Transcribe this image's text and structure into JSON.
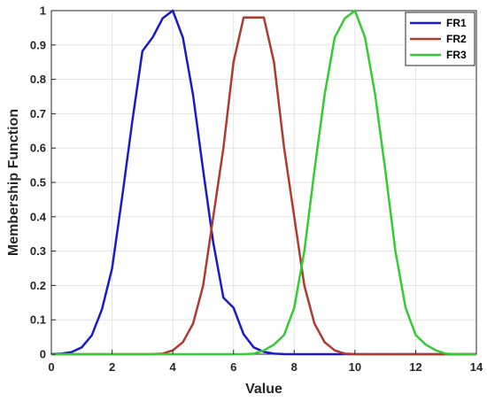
{
  "chart_data": {
    "type": "line",
    "xlabel": "Value",
    "ylabel": "Membership Function",
    "xlim": [
      0,
      14
    ],
    "ylim": [
      0,
      1
    ],
    "xticks": [
      "0",
      "2",
      "4",
      "6",
      "8",
      "10",
      "12",
      "14"
    ],
    "yticks": [
      "0",
      "0.1",
      "0.2",
      "0.3",
      "0.4",
      "0.5",
      "0.6",
      "0.7",
      "0.8",
      "0.9",
      "1"
    ],
    "grid": true,
    "legend_position": "top-right",
    "x": [
      0,
      0.333,
      0.667,
      1,
      1.333,
      1.667,
      2,
      2.333,
      2.667,
      3,
      3.333,
      3.667,
      4,
      4.333,
      4.667,
      5,
      5.333,
      5.667,
      6,
      6.333,
      6.667,
      7,
      7.333,
      7.667,
      8,
      8.333,
      8.667,
      9,
      9.333,
      9.667,
      10,
      10.333,
      10.667,
      11,
      11.333,
      11.667,
      12,
      12.333,
      12.667,
      13,
      13.333,
      13.667,
      14
    ],
    "series": [
      {
        "name": "FR1",
        "color": "#1a1acc",
        "values": [
          0.0003,
          0.0015,
          0.0061,
          0.0198,
          0.055,
          0.1307,
          0.2494,
          0.4578,
          0.6785,
          0.8825,
          0.9216,
          0.9778,
          1.0,
          0.9216,
          0.7548,
          0.5353,
          0.3247,
          0.1645,
          0.1353,
          0.0578,
          0.0198,
          0.0067,
          0.0017,
          0.0004,
          0.0001,
          0,
          0,
          0,
          0,
          0,
          0,
          0,
          0,
          0,
          0,
          0,
          0,
          0,
          0,
          0,
          0,
          0,
          0
        ]
      },
      {
        "name": "FR2",
        "color": "#b03a2e",
        "values": [
          0,
          0,
          0,
          0,
          0,
          0,
          0,
          0,
          0,
          0,
          0.0004,
          0.0017,
          0.0111,
          0.0351,
          0.0889,
          0.2,
          0.4,
          0.6,
          0.85,
          0.98,
          0.98,
          0.98,
          0.85,
          0.6,
          0.4,
          0.2,
          0.0889,
          0.0351,
          0.0111,
          0.0017,
          0.0004,
          0,
          0,
          0,
          0,
          0,
          0,
          0,
          0,
          0,
          0,
          0,
          0
        ]
      },
      {
        "name": "FR3",
        "color": "#33cc33",
        "values": [
          0,
          0,
          0,
          0,
          0,
          0,
          0,
          0,
          0,
          0,
          0,
          0,
          0,
          0,
          0,
          0,
          0,
          0,
          0,
          0.0003,
          0.0013,
          0.0111,
          0.0278,
          0.0561,
          0.1353,
          0.3001,
          0.5353,
          0.7548,
          0.9216,
          0.9778,
          1.0,
          0.9216,
          0.7548,
          0.5353,
          0.3001,
          0.1353,
          0.0561,
          0.0278,
          0.0111,
          0.0013,
          0.0003,
          0,
          0
        ]
      }
    ]
  }
}
